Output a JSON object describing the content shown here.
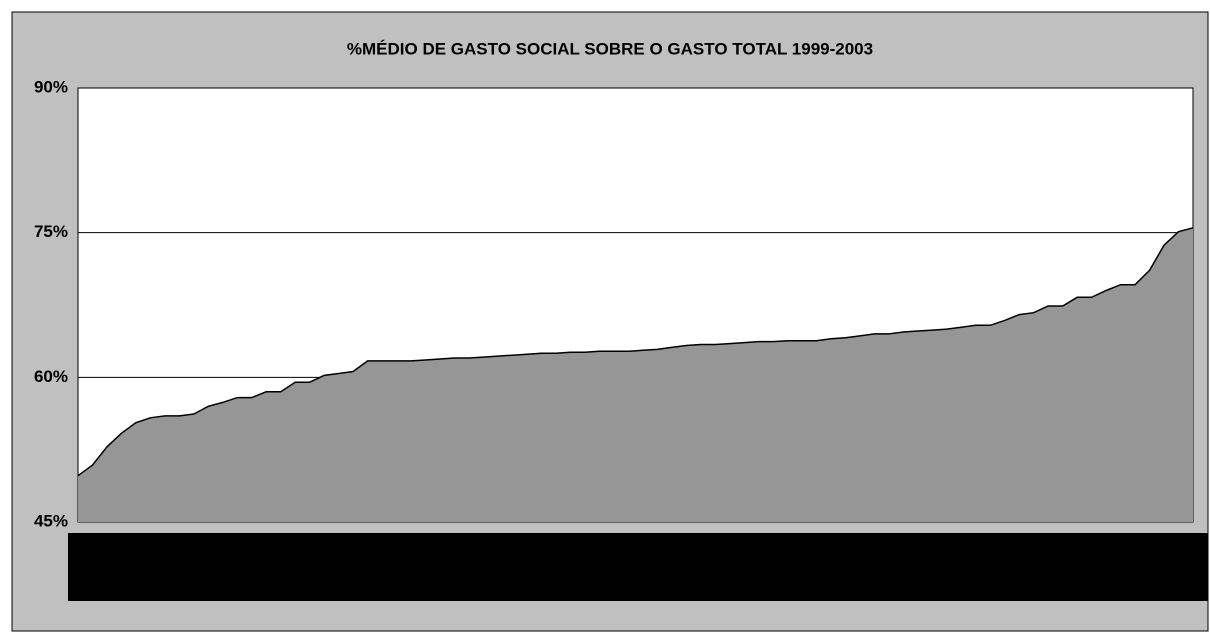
{
  "chart_data": {
    "type": "area",
    "title": "%MÉDIO DE GASTO SOCIAL SOBRE O GASTO TOTAL 1999-2003",
    "categories": [
      null,
      null,
      null,
      null,
      null,
      null,
      null,
      null,
      null,
      null,
      null,
      null,
      null,
      null,
      null,
      null,
      null,
      null,
      null,
      null,
      null,
      null,
      null,
      null,
      null,
      null,
      null,
      null,
      null,
      null,
      null,
      null,
      null,
      null,
      null,
      null,
      null,
      null,
      null,
      null,
      null,
      null,
      null,
      null,
      null,
      null,
      null,
      null,
      null,
      null,
      null,
      null,
      null,
      null,
      null,
      null,
      null,
      null,
      null,
      null,
      null,
      null,
      null,
      null,
      null,
      null,
      null,
      null,
      null,
      null,
      null,
      null,
      null,
      null,
      null,
      null,
      null,
      null
    ],
    "values": [
      49.8,
      50.9,
      52.8,
      54.2,
      55.3,
      55.8,
      56.0,
      56.0,
      56.2,
      57.0,
      57.4,
      57.9,
      57.9,
      58.5,
      58.5,
      59.5,
      59.5,
      60.2,
      60.4,
      60.6,
      61.7,
      61.7,
      61.7,
      61.7,
      61.8,
      61.9,
      62.0,
      62.0,
      62.1,
      62.2,
      62.3,
      62.4,
      62.5,
      62.5,
      62.6,
      62.6,
      62.7,
      62.7,
      62.7,
      62.8,
      62.9,
      63.1,
      63.3,
      63.4,
      63.4,
      63.5,
      63.6,
      63.7,
      63.7,
      63.8,
      63.8,
      63.8,
      64.0,
      64.1,
      64.3,
      64.5,
      64.5,
      64.7,
      64.8,
      64.9,
      65.0,
      65.2,
      65.4,
      65.4,
      65.9,
      66.5,
      66.7,
      67.4,
      67.4,
      68.3,
      68.3,
      69.0,
      69.6,
      69.6,
      71.1,
      73.7,
      75.1,
      75.5
    ],
    "color": "#969696",
    "ylim": [
      45,
      90
    ],
    "yticks": [
      {
        "value": 45,
        "label": "45%"
      },
      {
        "value": 60,
        "label": "60%"
      },
      {
        "value": 75,
        "label": "75%"
      },
      {
        "value": 90,
        "label": "90%"
      }
    ],
    "grid": true
  }
}
